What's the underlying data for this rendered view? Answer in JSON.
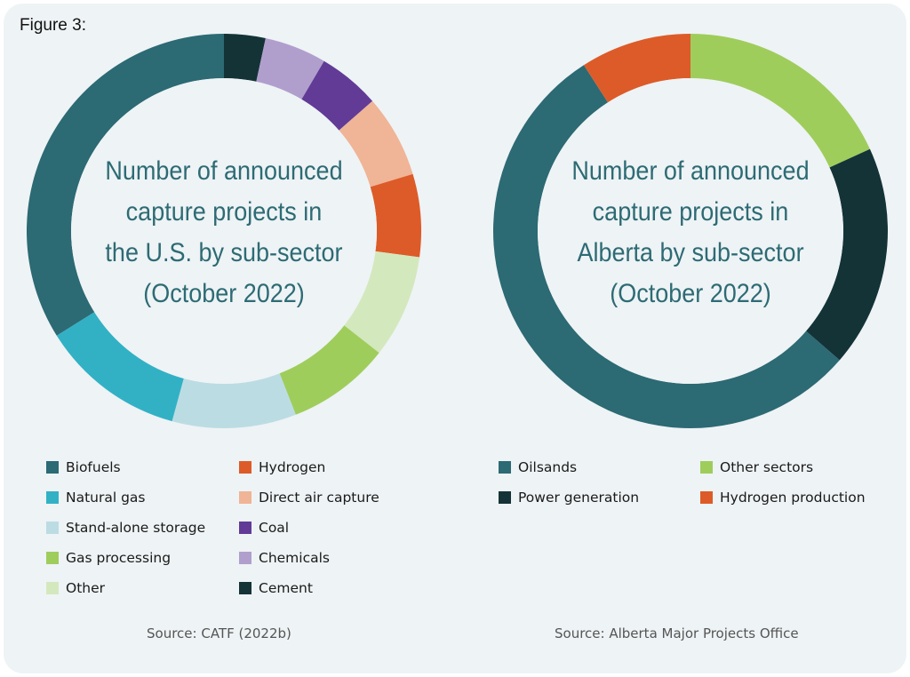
{
  "figure_label": "Figure 3:",
  "chart_data": [
    {
      "type": "pie",
      "title_lines": [
        "Number of announced",
        "capture projects in",
        "the U.S. by sub-sector",
        "(October 2022)"
      ],
      "slices": [
        {
          "label": "Cement",
          "value": 2,
          "color": "#143337"
        },
        {
          "label": "Chemicals",
          "value": 3,
          "color": "#b09fcd"
        },
        {
          "label": "Coal",
          "value": 3,
          "color": "#613b96"
        },
        {
          "label": "Direct air capture",
          "value": 4,
          "color": "#f0b496"
        },
        {
          "label": "Hydrogen",
          "value": 4,
          "color": "#dd5b28"
        },
        {
          "label": "Other",
          "value": 5,
          "color": "#d4e8be"
        },
        {
          "label": "Gas processing",
          "value": 5,
          "color": "#9fcd5c"
        },
        {
          "label": "Stand-alone storage",
          "value": 6,
          "color": "#bcdce4"
        },
        {
          "label": "Natural gas",
          "value": 7,
          "color": "#32b1c5"
        },
        {
          "label": "Biofuels",
          "value": 20,
          "color": "#2c6a74"
        }
      ],
      "legend": [
        {
          "label": "Biofuels",
          "color": "#2c6a74"
        },
        {
          "label": "Natural gas",
          "color": "#32b1c5"
        },
        {
          "label": "Stand-alone storage",
          "color": "#bcdce4"
        },
        {
          "label": "Gas processing",
          "color": "#9fcd5c"
        },
        {
          "label": "Other",
          "color": "#d4e8be"
        },
        {
          "label": "Hydrogen",
          "color": "#dd5b28"
        },
        {
          "label": "Direct air capture",
          "color": "#f0b496"
        },
        {
          "label": "Coal",
          "color": "#613b96"
        },
        {
          "label": "Chemicals",
          "color": "#b09fcd"
        },
        {
          "label": "Cement",
          "color": "#143337"
        }
      ],
      "source": "Source: CATF (2022b)"
    },
    {
      "type": "pie",
      "title_lines": [
        "Number of announced",
        "capture projects in",
        "Alberta by sub-sector",
        "(October 2022)"
      ],
      "slices": [
        {
          "label": "Other sectors",
          "value": 2,
          "color": "#9fcd5c"
        },
        {
          "label": "Power generation",
          "value": 2,
          "color": "#143337"
        },
        {
          "label": "Oilsands",
          "value": 6,
          "color": "#2c6a74"
        },
        {
          "label": "Hydrogen production",
          "value": 1,
          "color": "#dd5b28"
        }
      ],
      "legend": [
        {
          "label": "Oilsands",
          "color": "#2c6a74"
        },
        {
          "label": "Power generation",
          "color": "#143337"
        },
        {
          "label": "Other sectors",
          "color": "#9fcd5c"
        },
        {
          "label": "Hydrogen production",
          "color": "#dd5b28"
        }
      ],
      "source": "Source: Alberta Major Projects Office"
    }
  ]
}
